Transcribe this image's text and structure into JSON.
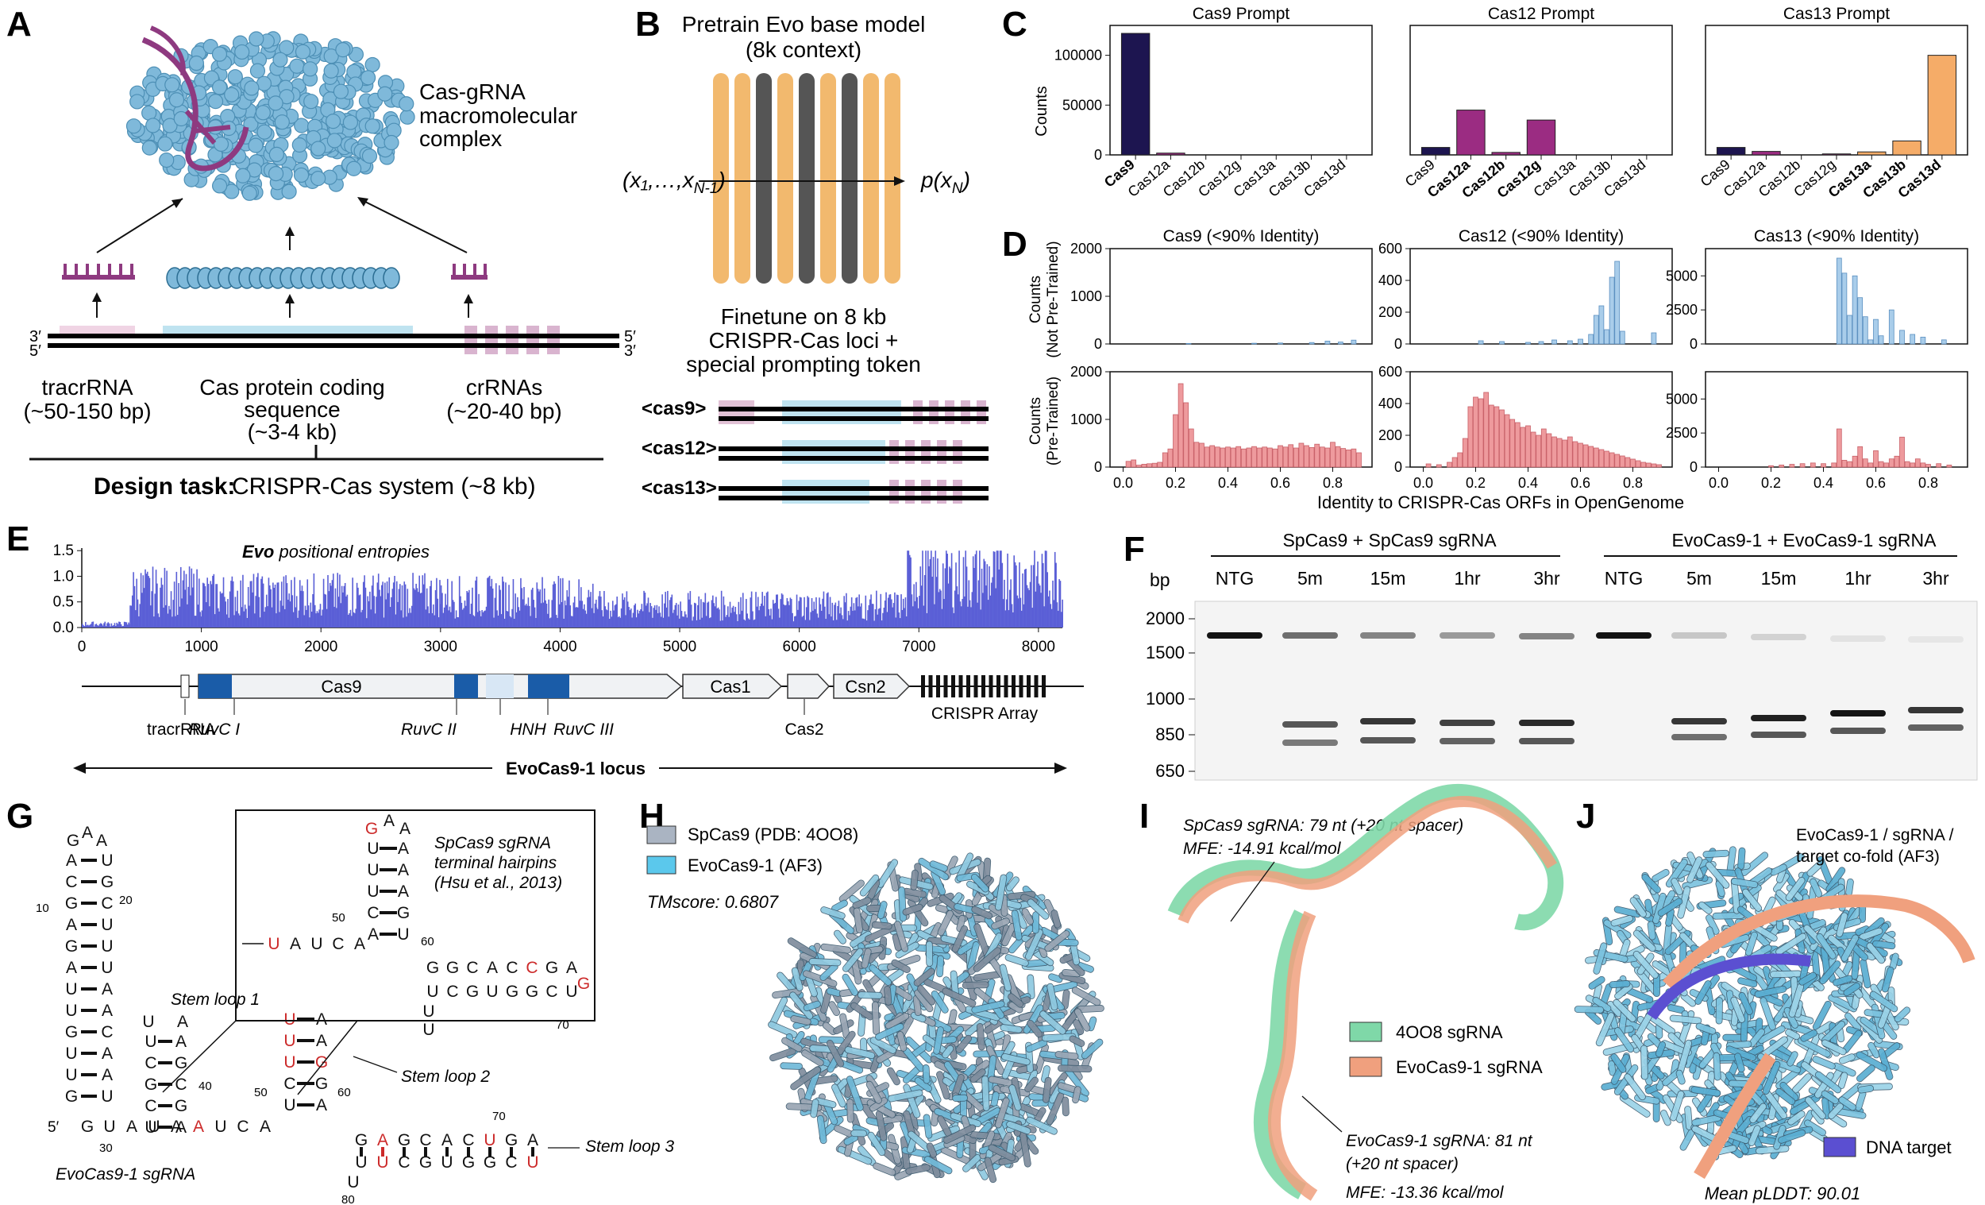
{
  "panels": {
    "A": {
      "letter": "A",
      "complex_label": [
        "Cas-gRNA",
        "macromolecular",
        "complex"
      ],
      "strand_3_left": "3′",
      "strand_5_left": "5′",
      "strand_5_right": "5′",
      "strand_3_right": "3′",
      "tracr_label": [
        "tracrRNA",
        "(~50-150 bp)"
      ],
      "cas_label": [
        "Cas protein coding",
        "sequence",
        "(~3-4 kb)"
      ],
      "crrna_label": [
        "crRNAs",
        "(~20-40 bp)"
      ],
      "design_task_bold": "Design task:",
      "design_task_text": "CRISPR-Cas system (~8 kb)"
    },
    "B": {
      "letter": "B",
      "pretrain": [
        "Pretrain Evo base model",
        "(8k context)"
      ],
      "input_label": "(x₁,…,x",
      "input_sub": "N-1",
      "output_label": "p(x",
      "output_sub": "N",
      "finetune": [
        "Finetune on 8 kb",
        "CRISPR-Cas loci +",
        "special prompting token"
      ],
      "tokens": [
        "<cas9>",
        "<cas12>",
        "<cas13>"
      ]
    },
    "C": {
      "letter": "C",
      "ylabel": "Counts",
      "yticks": [
        "0",
        "50000",
        "100000"
      ]
    },
    "D": {
      "letter": "D",
      "ylabel_top": [
        "Counts",
        "(Not Pre-Trained)"
      ],
      "ylabel_bottom": [
        "Counts",
        "(Pre-Trained)"
      ],
      "xlabel": "Identity to CRISPR-Cas ORFs in OpenGenome",
      "xticks": [
        "0.0",
        "0.2",
        "0.4",
        "0.6",
        "0.8"
      ]
    },
    "E": {
      "letter": "E",
      "title_italic": "Evo",
      "title_rest": " positional entropies",
      "yticks": [
        "0.0",
        "0.5",
        "1.0",
        "1.5"
      ],
      "xticks": [
        "0",
        "1000",
        "2000",
        "3000",
        "4000",
        "5000",
        "6000",
        "7000",
        "8000"
      ],
      "genes": {
        "cas9": "Cas9",
        "cas1": "Cas1",
        "csn2": "Csn2",
        "cas2": "Cas2",
        "crispr": "CRISPR Array",
        "tracr": "tracrRNA"
      },
      "domains": [
        "RuvC I",
        "RuvC II",
        "HNH",
        "RuvC III"
      ],
      "locus_label": "EvoCas9-1 locus"
    },
    "F": {
      "letter": "F",
      "group1": "SpCas9 + SpCas9 sgRNA",
      "group2": "EvoCas9-1 + EvoCas9-1 sgRNA",
      "bp_label": "bp",
      "lanes": [
        "NTG",
        "5m",
        "15m",
        "1hr",
        "3hr",
        "NTG",
        "5m",
        "15m",
        "1hr",
        "3hr"
      ],
      "ladder": [
        "2000",
        "1500",
        "1000",
        "850",
        "650"
      ]
    },
    "G": {
      "letter": "G",
      "caption": "EvoCas9-1 sgRNA",
      "inset_title": [
        "SpCas9 sgRNA",
        "terminal hairpins",
        "(Hsu et al., 2013)"
      ],
      "stem_loops": [
        "Stem loop 1",
        "Stem loop 2",
        "Stem loop 3"
      ]
    },
    "H": {
      "letter": "H",
      "legend": [
        "SpCas9 (PDB: 4OO8)",
        "EvoCas9-1 (AF3)"
      ],
      "tmscore": "TMscore: 0.6807"
    },
    "I": {
      "letter": "I",
      "sp_label": [
        "SpCas9 sgRNA: 79 nt (+20 nt spacer)",
        "MFE: -14.91 kcal/mol"
      ],
      "evo_label": [
        "EvoCas9-1 sgRNA: 81 nt",
        "(+20 nt spacer)",
        "MFE: -13.36 kcal/mol"
      ],
      "legend": [
        "4OO8 sgRNA",
        "EvoCas9-1 sgRNA"
      ]
    },
    "J": {
      "letter": "J",
      "title": [
        "EvoCas9-1 / sgRNA /",
        "target co-fold (AF3)"
      ],
      "legend": "DNA target",
      "plddt": "Mean pLDDT: 90.01"
    }
  },
  "colors": {
    "purple": "#8e3a80",
    "navy": "#1d1550",
    "magenta": "#9b2c82",
    "orange": "#f5ac68",
    "lightblue": "#a9cdea",
    "salmon": "#ee9a9d",
    "entropy": "#5a5fd6",
    "cas_blue": "#1a5ca8",
    "evo_cyan": "#5bc8ec",
    "sp_gray": "#aab4c2",
    "green_rna": "#7fd8a8",
    "salmon_rna": "#f0a07e",
    "dna_target": "#5b4fd1"
  },
  "chart_data": [
    {
      "type": "bar",
      "title": "Cas9 Prompt",
      "categories": [
        "Cas9",
        "Cas12a",
        "Cas12b",
        "Cas12g",
        "Cas13a",
        "Cas13b",
        "Cas13d"
      ],
      "values": [
        122000,
        1800,
        0,
        0,
        0,
        0,
        0
      ],
      "bold": [
        "Cas9"
      ],
      "ylabel": "Counts",
      "ylim": [
        0,
        130000
      ]
    },
    {
      "type": "bar",
      "title": "Cas12 Prompt",
      "categories": [
        "Cas9",
        "Cas12a",
        "Cas12b",
        "Cas12g",
        "Cas13a",
        "Cas13b",
        "Cas13d"
      ],
      "values": [
        7500,
        45000,
        2500,
        35000,
        0,
        0,
        0
      ],
      "bold": [
        "Cas12a",
        "Cas12b",
        "Cas12g"
      ],
      "ylim": [
        0,
        130000
      ]
    },
    {
      "type": "bar",
      "title": "Cas13 Prompt",
      "categories": [
        "Cas9",
        "Cas12a",
        "Cas12b",
        "Cas12g",
        "Cas13a",
        "Cas13b",
        "Cas13d"
      ],
      "values": [
        7500,
        3500,
        0,
        1000,
        3000,
        14000,
        100000
      ],
      "bold": [
        "Cas13a",
        "Cas13b",
        "Cas13d"
      ],
      "ylim": [
        0,
        130000
      ]
    },
    {
      "type": "bar",
      "title": "Cas9 (<90% Identity)",
      "subplot": "not-pretrained",
      "ylim": [
        0,
        2000
      ],
      "yticks": [
        0,
        1000,
        2000
      ],
      "x": [
        0.25,
        0.5,
        0.6,
        0.72,
        0.78,
        0.83,
        0.88
      ],
      "values": [
        10,
        15,
        20,
        30,
        60,
        40,
        80
      ]
    },
    {
      "type": "bar",
      "title": "Cas12 (<90% Identity)",
      "subplot": "not-pretrained",
      "ylim": [
        0,
        600
      ],
      "yticks": [
        0,
        200,
        400,
        600
      ],
      "x": [
        0.22,
        0.3,
        0.4,
        0.45,
        0.5,
        0.56,
        0.6,
        0.64,
        0.66,
        0.68,
        0.7,
        0.72,
        0.74,
        0.76,
        0.88
      ],
      "values": [
        20,
        15,
        10,
        15,
        25,
        20,
        30,
        60,
        180,
        240,
        90,
        420,
        520,
        80,
        70
      ]
    },
    {
      "type": "bar",
      "title": "Cas13 (<90% Identity)",
      "subplot": "not-pretrained",
      "ylim": [
        0,
        7000
      ],
      "yticks": [
        0,
        2500,
        5000
      ],
      "x": [
        0.46,
        0.48,
        0.5,
        0.52,
        0.54,
        0.56,
        0.58,
        0.6,
        0.62,
        0.66,
        0.7,
        0.74,
        0.78,
        0.86
      ],
      "values": [
        6300,
        5200,
        2100,
        5000,
        3400,
        2000,
        300,
        1800,
        600,
        2500,
        1000,
        700,
        500,
        300
      ]
    },
    {
      "type": "bar",
      "title": "Cas9 (<90% Identity)",
      "subplot": "pre-trained",
      "ylim": [
        0,
        2000
      ],
      "yticks": [
        0,
        1000,
        2000
      ],
      "x": [
        0.02,
        0.04,
        0.06,
        0.08,
        0.1,
        0.12,
        0.14,
        0.16,
        0.18,
        0.2,
        0.22,
        0.24,
        0.26,
        0.28,
        0.3,
        0.32,
        0.34,
        0.36,
        0.38,
        0.4,
        0.42,
        0.44,
        0.46,
        0.48,
        0.5,
        0.52,
        0.54,
        0.56,
        0.58,
        0.6,
        0.62,
        0.64,
        0.66,
        0.68,
        0.7,
        0.72,
        0.74,
        0.76,
        0.78,
        0.8,
        0.82,
        0.84,
        0.86,
        0.88,
        0.9
      ],
      "values": [
        120,
        150,
        40,
        60,
        70,
        80,
        100,
        300,
        380,
        1100,
        1750,
        1350,
        800,
        520,
        500,
        420,
        450,
        420,
        400,
        420,
        400,
        430,
        380,
        400,
        430,
        400,
        420,
        400,
        380,
        450,
        420,
        470,
        400,
        500,
        450,
        410,
        480,
        420,
        400,
        520,
        430,
        390,
        360,
        380,
        300
      ]
    },
    {
      "type": "bar",
      "title": "Cas12 (<90% Identity)",
      "subplot": "pre-trained",
      "ylim": [
        0,
        600
      ],
      "yticks": [
        0,
        200,
        400,
        600
      ],
      "x": [
        0.02,
        0.06,
        0.1,
        0.12,
        0.14,
        0.16,
        0.18,
        0.2,
        0.22,
        0.24,
        0.26,
        0.28,
        0.3,
        0.32,
        0.34,
        0.36,
        0.38,
        0.4,
        0.42,
        0.44,
        0.46,
        0.48,
        0.5,
        0.52,
        0.54,
        0.56,
        0.58,
        0.6,
        0.62,
        0.64,
        0.66,
        0.68,
        0.7,
        0.72,
        0.74,
        0.76,
        0.78,
        0.8,
        0.82,
        0.84,
        0.86,
        0.88,
        0.9
      ],
      "values": [
        20,
        15,
        30,
        60,
        90,
        180,
        380,
        440,
        430,
        470,
        390,
        380,
        360,
        330,
        300,
        280,
        250,
        260,
        220,
        200,
        240,
        210,
        190,
        180,
        170,
        190,
        160,
        150,
        140,
        130,
        120,
        110,
        100,
        90,
        80,
        70,
        60,
        50,
        40,
        30,
        25,
        20,
        15
      ]
    },
    {
      "type": "bar",
      "title": "Cas13 (<90% Identity)",
      "subplot": "pre-trained",
      "ylim": [
        0,
        7000
      ],
      "yticks": [
        0,
        2500,
        5000
      ],
      "x": [
        0.2,
        0.24,
        0.28,
        0.32,
        0.36,
        0.4,
        0.44,
        0.46,
        0.48,
        0.5,
        0.52,
        0.54,
        0.56,
        0.58,
        0.6,
        0.62,
        0.64,
        0.66,
        0.68,
        0.7,
        0.72,
        0.74,
        0.76,
        0.78,
        0.8,
        0.84,
        0.88
      ],
      "values": [
        100,
        150,
        200,
        250,
        300,
        250,
        300,
        2800,
        500,
        400,
        800,
        1500,
        600,
        300,
        1200,
        400,
        300,
        600,
        800,
        2200,
        400,
        300,
        600,
        300,
        200,
        250,
        150
      ]
    },
    {
      "type": "bar",
      "title": "Evo positional entropies",
      "xlim": [
        0,
        8200
      ],
      "ylim": [
        0,
        1.55
      ],
      "yticks": [
        0.0,
        0.5,
        1.0,
        1.5
      ],
      "xticks": [
        0,
        1000,
        2000,
        3000,
        4000,
        5000,
        6000,
        7000,
        8000
      ],
      "segments": [
        {
          "x_start": 0,
          "x_end": 400,
          "level": 0.1
        },
        {
          "x_start": 400,
          "x_end": 1000,
          "level": 1.0
        },
        {
          "x_start": 1000,
          "x_end": 3000,
          "level": 0.9
        },
        {
          "x_start": 3000,
          "x_end": 4300,
          "level": 0.85
        },
        {
          "x_start": 4300,
          "x_end": 6900,
          "level": 0.6
        },
        {
          "x_start": 6900,
          "x_end": 8200,
          "level": 1.4
        }
      ]
    }
  ]
}
